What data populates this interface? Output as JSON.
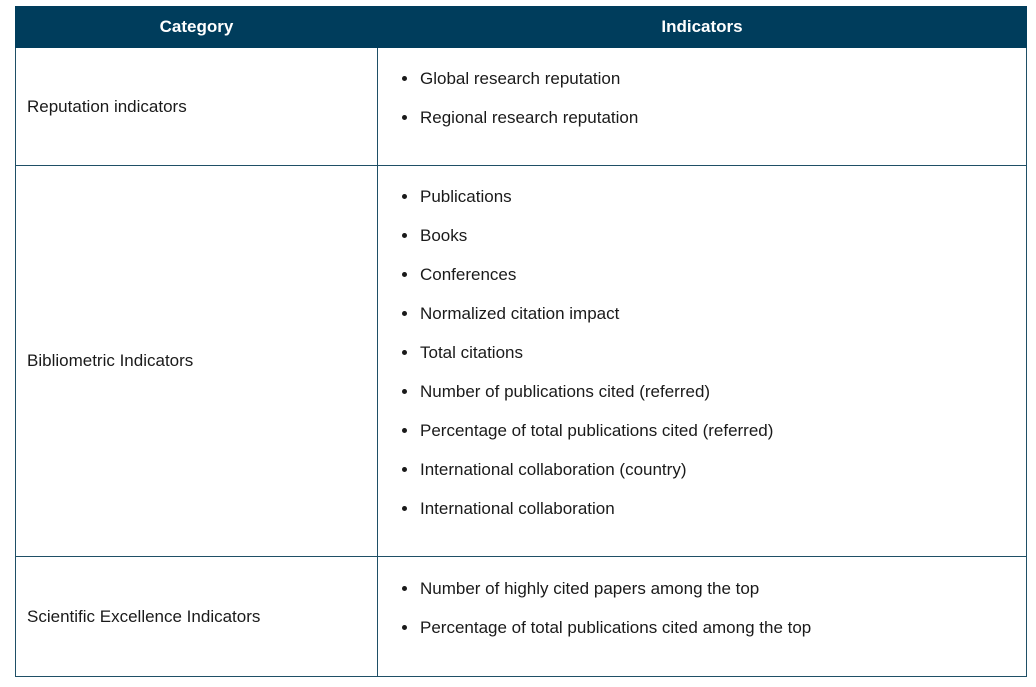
{
  "table": {
    "headers": [
      "Category",
      "Indicators"
    ],
    "rows": [
      {
        "category": "Reputation indicators",
        "indicators": [
          "Global research reputation",
          "Regional research reputation"
        ]
      },
      {
        "category": "Bibliometric Indicators",
        "indicators": [
          "Publications",
          "Books",
          "Conferences",
          "Normalized citation impact",
          "Total citations",
          "Number of publications cited (referred)",
          "Percentage of total publications cited (referred)",
          "International collaboration (country)",
          "International collaboration"
        ]
      },
      {
        "category": "Scientific Excellence Indicators",
        "indicators": [
          "Number of highly cited papers among the top",
          "Percentage of total publications cited among the top"
        ]
      }
    ]
  },
  "colors": {
    "header_bg": "#003d5c",
    "header_text": "#ffffff",
    "border": "#1f4f66"
  }
}
